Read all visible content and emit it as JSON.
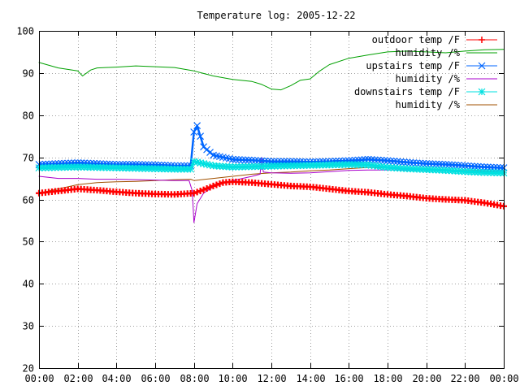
{
  "chart_data": {
    "type": "line",
    "title": "Temperature log: 2005-12-22",
    "xlabel": "",
    "ylabel": "",
    "xlim": [
      "00:00",
      "24:00"
    ],
    "ylim": [
      20,
      100
    ],
    "x_ticks": [
      "00:00",
      "02:00",
      "04:00",
      "06:00",
      "08:00",
      "10:00",
      "12:00",
      "14:00",
      "16:00",
      "18:00",
      "20:00",
      "22:00",
      "00:00"
    ],
    "y_ticks": [
      20,
      30,
      40,
      50,
      60,
      70,
      80,
      90,
      100
    ],
    "grid": true,
    "legend_position": "top-right",
    "series": [
      {
        "name": "outdoor temp /F",
        "color": "#ff0000",
        "marker": "plus",
        "points": [
          [
            "00:00",
            61.5
          ],
          [
            "01:00",
            62
          ],
          [
            "02:00",
            62.5
          ],
          [
            "03:00",
            62.2
          ],
          [
            "04:00",
            61.8
          ],
          [
            "05:00",
            61.5
          ],
          [
            "06:00",
            61.3
          ],
          [
            "07:00",
            61.2
          ],
          [
            "08:00",
            61.5
          ],
          [
            "08:30",
            62.3
          ],
          [
            "09:00",
            63.2
          ],
          [
            "09:30",
            64
          ],
          [
            "10:00",
            64.2
          ],
          [
            "11:00",
            64
          ],
          [
            "12:00",
            63.6
          ],
          [
            "13:00",
            63.2
          ],
          [
            "14:00",
            63
          ],
          [
            "15:00",
            62.5
          ],
          [
            "16:00",
            62
          ],
          [
            "17:00",
            61.7
          ],
          [
            "18:00",
            61.2
          ],
          [
            "19:00",
            60.8
          ],
          [
            "20:00",
            60.3
          ],
          [
            "21:00",
            60
          ],
          [
            "22:00",
            59.8
          ],
          [
            "23:00",
            59.2
          ],
          [
            "24:00",
            58.4
          ]
        ]
      },
      {
        "name": "humidity /%",
        "color": "#00a000",
        "marker": "none",
        "points": [
          [
            "00:00",
            92.5
          ],
          [
            "01:00",
            91.2
          ],
          [
            "02:00",
            90.5
          ],
          [
            "02:15",
            89.3
          ],
          [
            "02:40",
            90.7
          ],
          [
            "03:00",
            91.2
          ],
          [
            "04:00",
            91.4
          ],
          [
            "05:00",
            91.7
          ],
          [
            "06:00",
            91.5
          ],
          [
            "07:00",
            91.3
          ],
          [
            "08:00",
            90.5
          ],
          [
            "09:00",
            89.3
          ],
          [
            "10:00",
            88.5
          ],
          [
            "11:00",
            88
          ],
          [
            "11:30",
            87.3
          ],
          [
            "12:00",
            86.2
          ],
          [
            "12:30",
            86
          ],
          [
            "13:00",
            87
          ],
          [
            "13:30",
            88.3
          ],
          [
            "14:00",
            88.6
          ],
          [
            "14:30",
            90.5
          ],
          [
            "15:00",
            92
          ],
          [
            "16:00",
            93.5
          ],
          [
            "17:00",
            94.3
          ],
          [
            "18:00",
            95
          ],
          [
            "19:00",
            95.2
          ],
          [
            "20:00",
            95
          ],
          [
            "21:00",
            94.8
          ],
          [
            "22:00",
            95.2
          ],
          [
            "23:00",
            95.5
          ],
          [
            "24:00",
            95.6
          ]
        ]
      },
      {
        "name": "upstairs temp /F",
        "color": "#0066ff",
        "marker": "cross",
        "points": [
          [
            "00:00",
            68.3
          ],
          [
            "01:00",
            68.5
          ],
          [
            "02:00",
            68.7
          ],
          [
            "03:00",
            68.5
          ],
          [
            "04:00",
            68.3
          ],
          [
            "05:00",
            68.3
          ],
          [
            "06:00",
            68.2
          ],
          [
            "07:00",
            68
          ],
          [
            "07:50",
            68
          ],
          [
            "08:00",
            76
          ],
          [
            "08:10",
            77.5
          ],
          [
            "08:30",
            72.5
          ],
          [
            "09:00",
            70.5
          ],
          [
            "10:00",
            69.5
          ],
          [
            "11:00",
            69.3
          ],
          [
            "12:00",
            69
          ],
          [
            "13:00",
            69
          ],
          [
            "14:00",
            68.9
          ],
          [
            "15:00",
            69
          ],
          [
            "16:00",
            69.2
          ],
          [
            "17:00",
            69.5
          ],
          [
            "18:00",
            69.2
          ],
          [
            "19:00",
            68.8
          ],
          [
            "20:00",
            68.5
          ],
          [
            "21:00",
            68.3
          ],
          [
            "22:00",
            68
          ],
          [
            "23:00",
            67.7
          ],
          [
            "24:00",
            67.5
          ]
        ]
      },
      {
        "name": "humidity /%",
        "color": "#aa00cc",
        "marker": "none",
        "points": [
          [
            "00:00",
            65.5
          ],
          [
            "01:00",
            65
          ],
          [
            "02:00",
            65
          ],
          [
            "03:00",
            64.8
          ],
          [
            "04:00",
            64.8
          ],
          [
            "05:00",
            64.7
          ],
          [
            "06:00",
            64.6
          ],
          [
            "07:00",
            64.5
          ],
          [
            "07:45",
            64.5
          ],
          [
            "07:55",
            62
          ],
          [
            "08:00",
            54.5
          ],
          [
            "08:10",
            59
          ],
          [
            "08:30",
            61.5
          ],
          [
            "09:00",
            63
          ],
          [
            "10:00",
            64.5
          ],
          [
            "11:00",
            65.5
          ],
          [
            "11:25",
            66
          ],
          [
            "11:30",
            70
          ],
          [
            "11:35",
            66.5
          ],
          [
            "12:00",
            66.3
          ],
          [
            "13:00",
            66.2
          ],
          [
            "14:00",
            66.3
          ],
          [
            "15:00",
            66.6
          ],
          [
            "16:00",
            66.9
          ],
          [
            "17:00",
            67
          ],
          [
            "18:00",
            67
          ],
          [
            "19:00",
            67
          ],
          [
            "20:00",
            66.9
          ],
          [
            "21:00",
            66.8
          ],
          [
            "22:00",
            66.8
          ],
          [
            "23:00",
            66.7
          ],
          [
            "24:00",
            66.6
          ]
        ]
      },
      {
        "name": "downstairs temp /F",
        "color": "#00e0e0",
        "marker": "star",
        "points": [
          [
            "00:00",
            67.5
          ],
          [
            "01:00",
            67.6
          ],
          [
            "02:00",
            67.7
          ],
          [
            "03:00",
            67.6
          ],
          [
            "04:00",
            67.5
          ],
          [
            "05:00",
            67.4
          ],
          [
            "06:00",
            67.3
          ],
          [
            "07:00",
            67.2
          ],
          [
            "07:50",
            67.2
          ],
          [
            "08:00",
            69
          ],
          [
            "08:30",
            68.5
          ],
          [
            "09:00",
            68
          ],
          [
            "10:00",
            67.7
          ],
          [
            "11:00",
            67.8
          ],
          [
            "12:00",
            67.9
          ],
          [
            "13:00",
            68
          ],
          [
            "14:00",
            68.1
          ],
          [
            "15:00",
            68.2
          ],
          [
            "16:00",
            68.3
          ],
          [
            "17:00",
            68.2
          ],
          [
            "18:00",
            67.6
          ],
          [
            "19:00",
            67.3
          ],
          [
            "20:00",
            67.1
          ],
          [
            "21:00",
            66.9
          ],
          [
            "22:00",
            66.6
          ],
          [
            "23:00",
            66.4
          ],
          [
            "24:00",
            66.3
          ]
        ]
      },
      {
        "name": "humidity /%",
        "color": "#a05000",
        "marker": "none",
        "points": [
          [
            "00:00",
            61.5
          ],
          [
            "01:00",
            62.5
          ],
          [
            "02:00",
            63.5
          ],
          [
            "03:00",
            64
          ],
          [
            "04:00",
            64.2
          ],
          [
            "05:00",
            64.3
          ],
          [
            "06:00",
            64.5
          ],
          [
            "07:00",
            64.7
          ],
          [
            "07:50",
            64.8
          ],
          [
            "08:00",
            64.5
          ],
          [
            "09:00",
            65
          ],
          [
            "10:00",
            65.5
          ],
          [
            "11:00",
            66
          ],
          [
            "12:00",
            66.3
          ],
          [
            "13:00",
            66.5
          ],
          [
            "14:00",
            66.8
          ],
          [
            "15:00",
            67
          ],
          [
            "16:00",
            67.3
          ],
          [
            "17:00",
            67.6
          ],
          [
            "18:00",
            67.5
          ],
          [
            "19:00",
            67.3
          ],
          [
            "20:00",
            67.2
          ],
          [
            "21:00",
            67
          ],
          [
            "22:00",
            66.9
          ],
          [
            "23:00",
            66.8
          ],
          [
            "24:00",
            66.8
          ]
        ]
      }
    ]
  }
}
